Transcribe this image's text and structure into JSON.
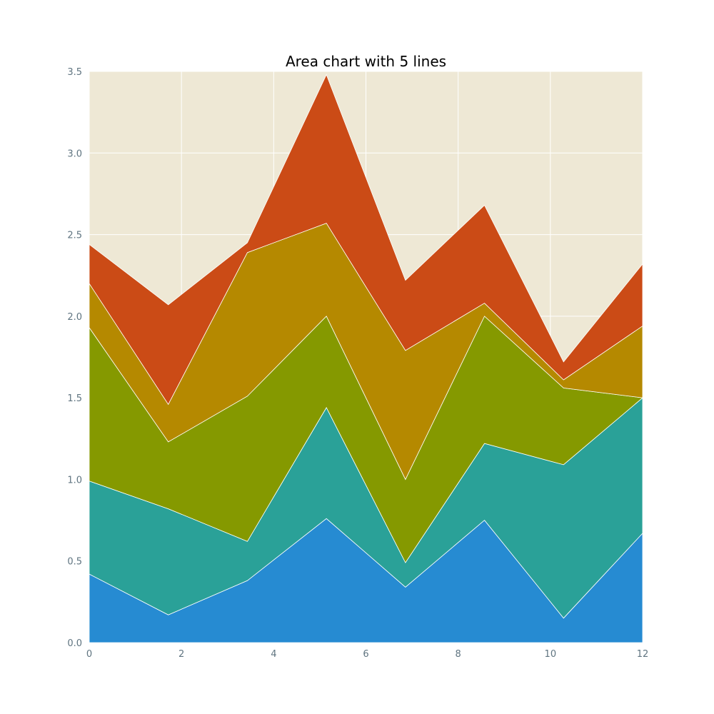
{
  "chart_data": {
    "type": "area",
    "stacked": true,
    "title": "Area chart with 5 lines",
    "xlabel": "",
    "ylabel": "",
    "x": [
      0,
      1.714,
      3.429,
      5.143,
      6.857,
      8.571,
      10.286,
      12
    ],
    "xlim": [
      0,
      12
    ],
    "ylim": [
      0,
      3.5
    ],
    "xticks": [
      "0",
      "2",
      "4",
      "6",
      "8",
      "10",
      "12"
    ],
    "xtick_values": [
      0,
      2,
      4,
      6,
      8,
      10,
      12
    ],
    "yticks": [
      "0.0",
      "0.5",
      "1.0",
      "1.5",
      "2.0",
      "2.5",
      "3.0",
      "3.5"
    ],
    "ytick_values": [
      0,
      0.5,
      1.0,
      1.5,
      2.0,
      2.5,
      3.0,
      3.5
    ],
    "grid": true,
    "legend": "none",
    "series": [
      {
        "values": [
          0.42,
          0.17,
          0.38,
          0.76,
          0.34,
          0.75,
          0.15,
          0.67
        ],
        "color": "#268bd2"
      },
      {
        "values": [
          0.57,
          0.65,
          0.24,
          0.68,
          0.15,
          0.47,
          0.94,
          0.83
        ],
        "color": "#2aa198"
      },
      {
        "values": [
          0.94,
          0.41,
          0.89,
          0.56,
          0.51,
          0.78,
          0.47,
          0.0
        ],
        "color": "#859900"
      },
      {
        "values": [
          0.27,
          0.23,
          0.88,
          0.57,
          0.79,
          0.08,
          0.05,
          0.44
        ],
        "color": "#b58900"
      },
      {
        "values": [
          0.24,
          0.61,
          0.06,
          0.91,
          0.43,
          0.6,
          0.11,
          0.38
        ],
        "color": "#cb4b16"
      }
    ],
    "colors": {
      "plot_background": "#eee8d5",
      "grid": "#ffffff",
      "edge": "#ffffff",
      "tick_text": "#5f7480"
    }
  }
}
